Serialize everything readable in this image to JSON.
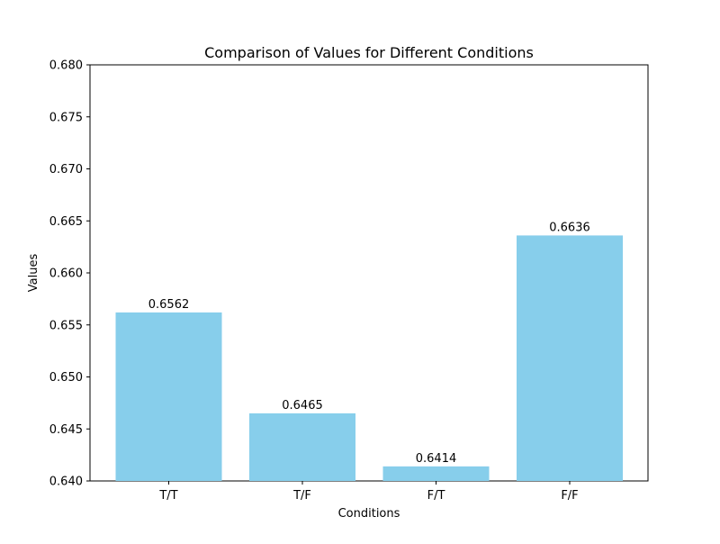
{
  "chart_data": {
    "type": "bar",
    "title": "Comparison of Values for Different Conditions",
    "xlabel": "Conditions",
    "ylabel": "Values",
    "categories": [
      "T/T",
      "T/F",
      "F/T",
      "F/F"
    ],
    "values": [
      0.6562,
      0.6465,
      0.6414,
      0.6636
    ],
    "data_labels": [
      "0.6562",
      "0.6465",
      "0.6414",
      "0.6636"
    ],
    "ylim": [
      0.64,
      0.68
    ],
    "yticks": [
      0.64,
      0.645,
      0.65,
      0.655,
      0.66,
      0.665,
      0.67,
      0.675,
      0.68
    ],
    "ytick_labels": [
      "0.640",
      "0.645",
      "0.650",
      "0.655",
      "0.660",
      "0.665",
      "0.670",
      "0.675",
      "0.680"
    ],
    "grid": false,
    "colors": {
      "bar": "#87ceeb",
      "axis": "#000000",
      "background": "#ffffff"
    }
  }
}
